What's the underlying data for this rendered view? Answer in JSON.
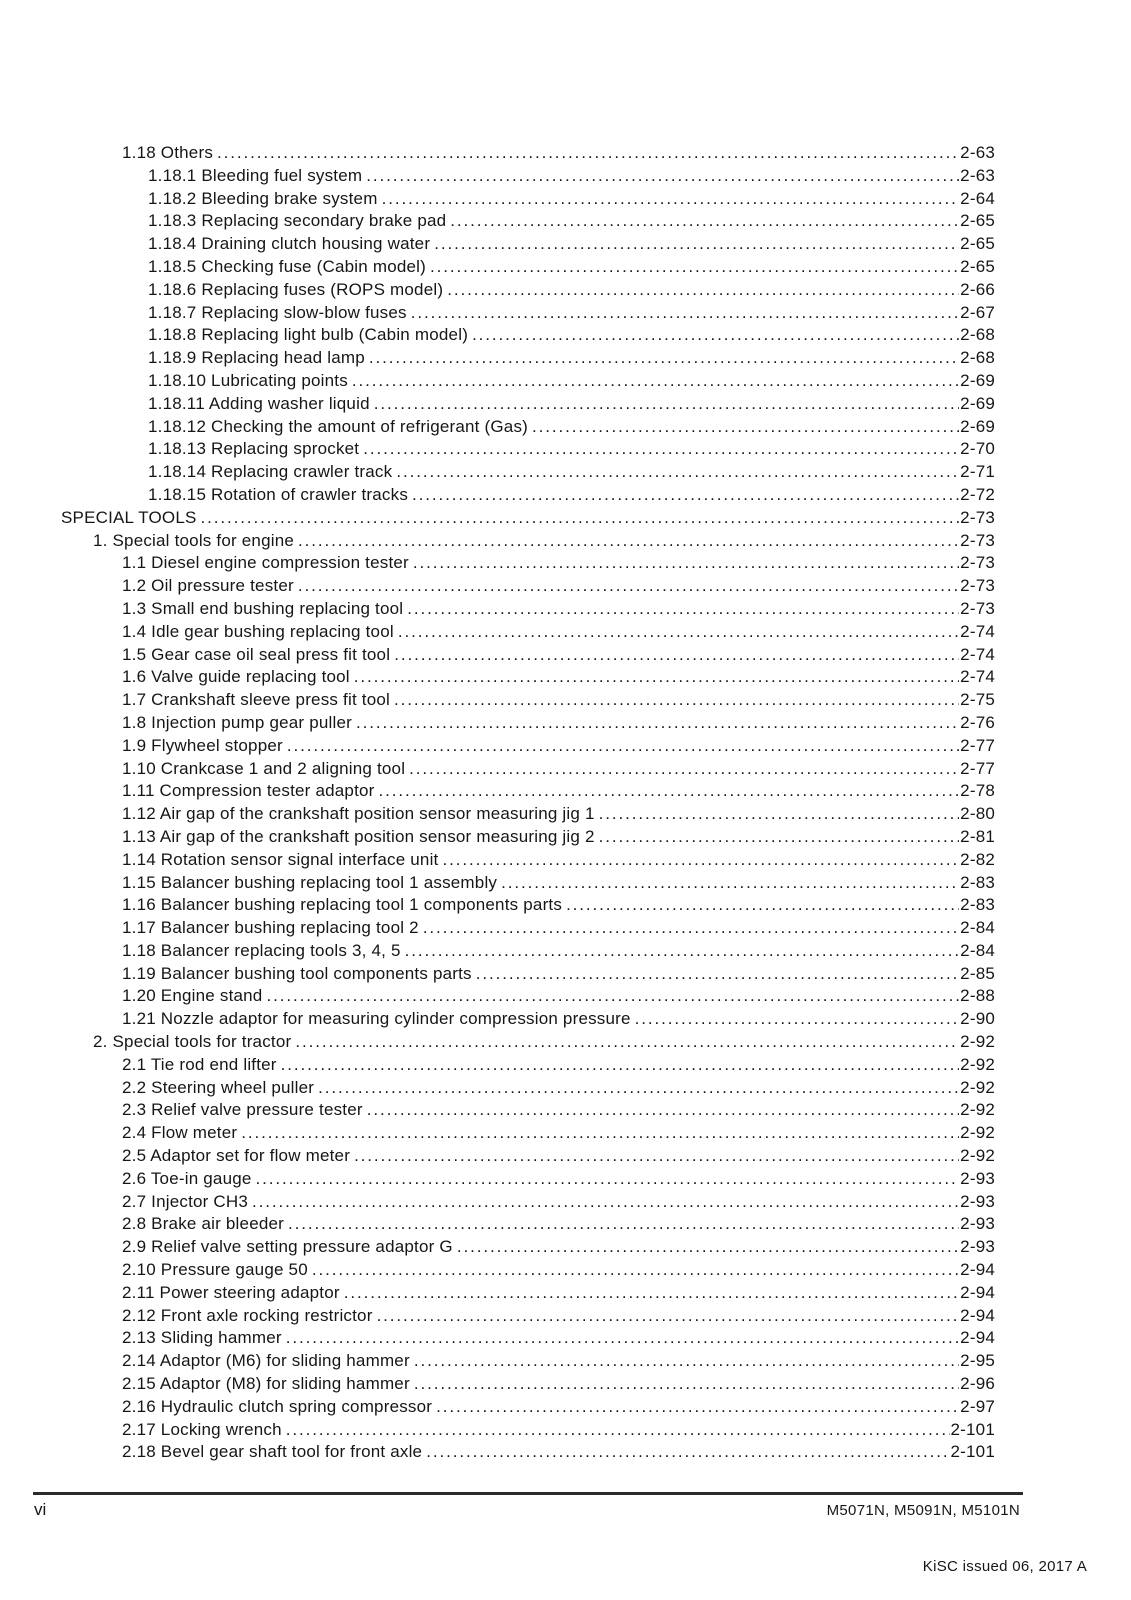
{
  "document": {
    "toc": {
      "entries": [
        {
          "level": 2,
          "title": "1.18 Others",
          "page": "2-63"
        },
        {
          "level": 3,
          "title": "1.18.1 Bleeding fuel system",
          "page": "2-63"
        },
        {
          "level": 3,
          "title": "1.18.2 Bleeding brake system",
          "page": "2-64"
        },
        {
          "level": 3,
          "title": "1.18.3 Replacing secondary brake pad",
          "page": "2-65"
        },
        {
          "level": 3,
          "title": "1.18.4 Draining clutch housing water",
          "page": "2-65"
        },
        {
          "level": 3,
          "title": "1.18.5 Checking fuse (Cabin model)",
          "page": "2-65"
        },
        {
          "level": 3,
          "title": "1.18.6 Replacing fuses (ROPS model)",
          "page": "2-66"
        },
        {
          "level": 3,
          "title": "1.18.7 Replacing slow-blow fuses",
          "page": "2-67"
        },
        {
          "level": 3,
          "title": "1.18.8 Replacing light bulb (Cabin model)",
          "page": "2-68"
        },
        {
          "level": 3,
          "title": "1.18.9 Replacing head lamp",
          "page": "2-68"
        },
        {
          "level": 3,
          "title": "1.18.10 Lubricating points",
          "page": "2-69"
        },
        {
          "level": 3,
          "title": "1.18.11 Adding washer liquid",
          "page": "2-69"
        },
        {
          "level": 3,
          "title": "1.18.12 Checking the amount of refrigerant (Gas)",
          "page": "2-69"
        },
        {
          "level": 3,
          "title": "1.18.13 Replacing sprocket",
          "page": "2-70"
        },
        {
          "level": 3,
          "title": "1.18.14 Replacing crawler track",
          "page": "2-71"
        },
        {
          "level": 3,
          "title": "1.18.15 Rotation of crawler tracks",
          "page": "2-72"
        },
        {
          "level": 0,
          "title": "SPECIAL TOOLS",
          "page": "2-73"
        },
        {
          "level": 1,
          "title": "1. Special tools for engine",
          "page": "2-73"
        },
        {
          "level": 2,
          "title": "1.1 Diesel engine compression tester",
          "page": "2-73"
        },
        {
          "level": 2,
          "title": "1.2 Oil pressure tester",
          "page": "2-73"
        },
        {
          "level": 2,
          "title": "1.3 Small end bushing replacing tool",
          "page": "2-73"
        },
        {
          "level": 2,
          "title": "1.4 Idle gear bushing replacing tool",
          "page": "2-74"
        },
        {
          "level": 2,
          "title": "1.5 Gear case oil seal press fit tool",
          "page": "2-74"
        },
        {
          "level": 2,
          "title": "1.6 Valve guide replacing tool",
          "page": "2-74"
        },
        {
          "level": 2,
          "title": "1.7 Crankshaft sleeve press fit tool",
          "page": "2-75"
        },
        {
          "level": 2,
          "title": "1.8 Injection pump gear puller",
          "page": "2-76"
        },
        {
          "level": 2,
          "title": "1.9 Flywheel stopper",
          "page": "2-77"
        },
        {
          "level": 2,
          "title": "1.10 Crankcase 1 and 2 aligning tool",
          "page": "2-77"
        },
        {
          "level": 2,
          "title": "1.11 Compression tester adaptor",
          "page": "2-78"
        },
        {
          "level": 2,
          "title": "1.12 Air gap of the crankshaft position sensor measuring jig 1",
          "page": "2-80"
        },
        {
          "level": 2,
          "title": "1.13 Air gap of the crankshaft position sensor measuring jig 2",
          "page": "2-81"
        },
        {
          "level": 2,
          "title": "1.14 Rotation sensor signal interface unit",
          "page": "2-82"
        },
        {
          "level": 2,
          "title": "1.15 Balancer bushing replacing tool 1 assembly",
          "page": "2-83"
        },
        {
          "level": 2,
          "title": "1.16 Balancer bushing replacing tool 1 components parts",
          "page": "2-83"
        },
        {
          "level": 2,
          "title": "1.17 Balancer bushing replacing tool 2",
          "page": "2-84"
        },
        {
          "level": 2,
          "title": "1.18 Balancer replacing tools 3, 4, 5",
          "page": "2-84"
        },
        {
          "level": 2,
          "title": "1.19 Balancer bushing tool components parts",
          "page": "2-85"
        },
        {
          "level": 2,
          "title": "1.20 Engine stand",
          "page": "2-88"
        },
        {
          "level": 2,
          "title": "1.21 Nozzle adaptor for measuring cylinder compression pressure",
          "page": "2-90"
        },
        {
          "level": 1,
          "title": "2. Special tools for tractor",
          "page": "2-92"
        },
        {
          "level": 2,
          "title": "2.1 Tie rod end lifter",
          "page": "2-92"
        },
        {
          "level": 2,
          "title": "2.2 Steering wheel puller",
          "page": "2-92"
        },
        {
          "level": 2,
          "title": "2.3 Relief valve pressure tester",
          "page": "2-92"
        },
        {
          "level": 2,
          "title": "2.4 Flow meter",
          "page": "2-92"
        },
        {
          "level": 2,
          "title": "2.5 Adaptor set for flow meter",
          "page": "2-92"
        },
        {
          "level": 2,
          "title": "2.6 Toe-in gauge",
          "page": "2-93"
        },
        {
          "level": 2,
          "title": "2.7 Injector CH3",
          "page": "2-93"
        },
        {
          "level": 2,
          "title": "2.8 Brake air bleeder",
          "page": "2-93"
        },
        {
          "level": 2,
          "title": "2.9 Relief valve setting pressure adaptor G",
          "page": "2-93"
        },
        {
          "level": 2,
          "title": "2.10 Pressure gauge 50",
          "page": "2-94"
        },
        {
          "level": 2,
          "title": "2.11 Power steering adaptor",
          "page": "2-94"
        },
        {
          "level": 2,
          "title": "2.12 Front axle rocking restrictor",
          "page": "2-94"
        },
        {
          "level": 2,
          "title": "2.13 Sliding hammer",
          "page": "2-94"
        },
        {
          "level": 2,
          "title": "2.14 Adaptor (M6) for sliding hammer",
          "page": "2-95"
        },
        {
          "level": 2,
          "title": "2.15 Adaptor (M8) for sliding hammer",
          "page": "2-96"
        },
        {
          "level": 2,
          "title": "2.16 Hydraulic clutch spring compressor",
          "page": "2-97"
        },
        {
          "level": 2,
          "title": "2.17 Locking wrench",
          "page": "2-101"
        },
        {
          "level": 2,
          "title": "2.18 Bevel gear shaft tool for front axle",
          "page": "2-101"
        }
      ]
    },
    "footer": {
      "page_label": "vi",
      "models": "M5071N, M5091N, M5101N",
      "issue_note": "KiSC issued 06, 2017 A"
    }
  }
}
